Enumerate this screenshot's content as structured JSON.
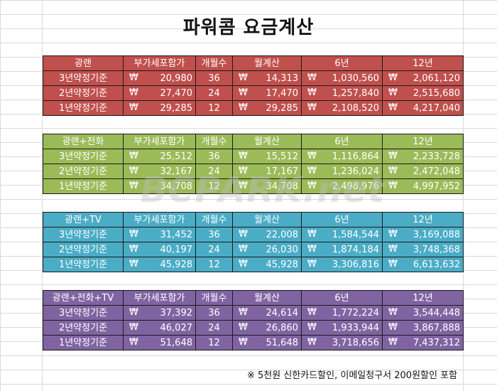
{
  "title": "파워콤 요금계산",
  "watermark": "BCPARK.net",
  "note": "※ 5천원 신한카드할인, 이메일청구서 200원할인 포함",
  "currency_symbol": "₩",
  "headers": [
    "부가세포함가",
    "개월수",
    "월계산",
    "6년",
    "12년"
  ],
  "tables": [
    {
      "name": "광랜",
      "color": "#c0504d",
      "rows": [
        {
          "label": "3년약정기준",
          "price": "20,980",
          "months": "36",
          "monthly": "14,313",
          "y6": "1,030,560",
          "y12": "2,061,120"
        },
        {
          "label": "2년약정기준",
          "price": "27,470",
          "months": "24",
          "monthly": "17,470",
          "y6": "1,257,840",
          "y12": "2,515,680"
        },
        {
          "label": "1년약정기준",
          "price": "29,285",
          "months": "12",
          "monthly": "29,285",
          "y6": "2,108,520",
          "y12": "4,217,040"
        }
      ]
    },
    {
      "name": "광랜+전화",
      "color": "#9bbb59",
      "rows": [
        {
          "label": "3년약정기준",
          "price": "25,512",
          "months": "36",
          "monthly": "15,512",
          "y6": "1,116,864",
          "y12": "2,233,728"
        },
        {
          "label": "2년약정기준",
          "price": "32,167",
          "months": "24",
          "monthly": "17,167",
          "y6": "1,236,024",
          "y12": "2,472,048"
        },
        {
          "label": "1년약정기준",
          "price": "34,708",
          "months": "12",
          "monthly": "34,708",
          "y6": "2,498,976",
          "y12": "4,997,952"
        }
      ]
    },
    {
      "name": "광랜+TV",
      "color": "#4bacc6",
      "rows": [
        {
          "label": "3년약정기준",
          "price": "31,452",
          "months": "36",
          "monthly": "22,008",
          "y6": "1,584,544",
          "y12": "3,169,088"
        },
        {
          "label": "2년약정기준",
          "price": "40,197",
          "months": "24",
          "monthly": "26,030",
          "y6": "1,874,184",
          "y12": "3,748,368"
        },
        {
          "label": "1년약정기준",
          "price": "45,928",
          "months": "12",
          "monthly": "45,928",
          "y6": "3,306,816",
          "y12": "6,613,632"
        }
      ]
    },
    {
      "name": "광랜+전화+TV",
      "color": "#8064a2",
      "rows": [
        {
          "label": "3년약정기준",
          "price": "37,392",
          "months": "36",
          "monthly": "24,614",
          "y6": "1,772,224",
          "y12": "3,544,448"
        },
        {
          "label": "2년약정기준",
          "price": "46,027",
          "months": "24",
          "monthly": "26,860",
          "y6": "1,933,944",
          "y12": "3,867,888"
        },
        {
          "label": "1년약정기준",
          "price": "51,648",
          "months": "12",
          "monthly": "51,648",
          "y6": "3,718,656",
          "y12": "7,437,312"
        }
      ]
    }
  ]
}
